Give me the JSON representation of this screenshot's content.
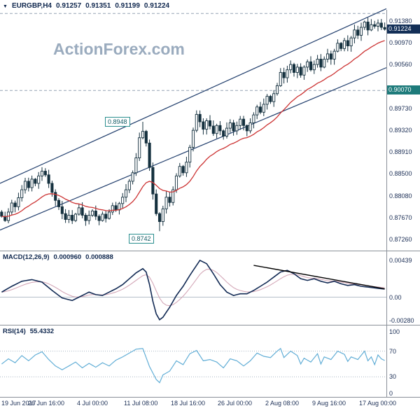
{
  "header": {
    "symbol": "EURGBP,H4",
    "open": "0.91257",
    "high": "0.91351",
    "low": "0.91199",
    "close": "0.91224"
  },
  "icons": {
    "symbol_dropdown": "▼"
  },
  "watermark": "ActionForex.com",
  "colors": {
    "candle": "#14303e",
    "ma": "#cc3333",
    "channel": "#23406e",
    "dashed": "#95a3b4",
    "macd": "#122a54",
    "signal": "#d4a8b8",
    "trendline": "#000000",
    "rsi": "#62aed6",
    "grid_dot": "#a9b6c2",
    "zero": "#b5bec8",
    "separator": "#8a9099",
    "price_box_bg": "#132f57",
    "level_box_bg": "#1e7b7b",
    "axis_text": "#1b2e55"
  },
  "price_panel": {
    "y_labels": [
      "0.91380",
      "0.90970",
      "0.90560",
      "0.89730",
      "0.89320",
      "0.88910",
      "0.88500",
      "0.88080",
      "0.87670",
      "0.87260"
    ],
    "current_price": "0.91224",
    "support_level": "0.90070",
    "resistance_tag": "0.8948",
    "support_tag": "0.8742"
  },
  "macd_panel": {
    "label": "MACD(12,26,9)",
    "value": "0.000960",
    "signal_value": "0.000888",
    "y_labels": [
      {
        "text": "0.00439",
        "v": 0.00439
      },
      {
        "text": "0.00",
        "v": 0
      },
      {
        "text": "-0.00280",
        "v": -0.0028
      }
    ]
  },
  "rsi_panel": {
    "label": "RSI(14)",
    "value": "55.4332",
    "y_labels": [
      {
        "text": "100",
        "v": 100
      },
      {
        "text": "70",
        "v": 70
      },
      {
        "text": "30",
        "v": 30
      },
      {
        "text": "0",
        "v": 0
      }
    ]
  },
  "chart_data": [
    {
      "type": "candlestick",
      "title": "EURGBP,H4",
      "ylabel": "price",
      "xlabel": "time",
      "ylim": [
        0.8708,
        0.9159
      ],
      "current_bar": {
        "open": 0.91257,
        "high": 0.91351,
        "low": 0.91199,
        "close": 0.91224
      },
      "closes": [
        0.877,
        0.8762,
        0.8778,
        0.8795,
        0.8788,
        0.8805,
        0.882,
        0.8836,
        0.8824,
        0.884,
        0.8832,
        0.8846,
        0.8855,
        0.8848,
        0.8832,
        0.8815,
        0.88,
        0.8788,
        0.8775,
        0.8764,
        0.8772,
        0.8762,
        0.8774,
        0.8786,
        0.8772,
        0.8762,
        0.8772,
        0.878,
        0.877,
        0.8762,
        0.8774,
        0.8766,
        0.8778,
        0.879,
        0.8782,
        0.8794,
        0.8806,
        0.882,
        0.8836,
        0.8852,
        0.888,
        0.8918,
        0.893,
        0.8908,
        0.8862,
        0.8812,
        0.8775,
        0.876,
        0.8784,
        0.8806,
        0.8796,
        0.882,
        0.8846,
        0.8864,
        0.8852,
        0.8872,
        0.89,
        0.8932,
        0.8962,
        0.8948,
        0.8934,
        0.895,
        0.894,
        0.8926,
        0.8941,
        0.8931,
        0.8921,
        0.8936,
        0.8946,
        0.8931,
        0.8941,
        0.8953,
        0.8941,
        0.8931,
        0.8946,
        0.8961,
        0.8976,
        0.8966,
        0.8981,
        0.8996,
        0.8986,
        0.9001,
        0.9016,
        0.9041,
        0.9031,
        0.9046,
        0.9056,
        0.9041,
        0.9051,
        0.9036,
        0.9051,
        0.9061,
        0.9046,
        0.9056,
        0.9066,
        0.9051,
        0.9066,
        0.9076,
        0.9066,
        0.9081,
        0.9096,
        0.9086,
        0.9101,
        0.9091,
        0.9106,
        0.9121,
        0.9111,
        0.9126,
        0.9136,
        0.9121,
        0.9131,
        0.9128,
        0.9134,
        0.9126,
        0.91224
      ],
      "key_bars": {
        "42": {
          "h": 0.8948
        },
        "47": {
          "l": 0.8742
        },
        "114": {
          "o": 0.91257,
          "h": 0.91351,
          "l": 0.91199,
          "c": 0.91224
        }
      },
      "ma": {
        "kind": "ema",
        "period": 21
      },
      "channel": {
        "upper": [
          0.8832,
          0.9161
        ],
        "lower": [
          0.8744,
          0.905
        ]
      },
      "dashed_levels": [
        0.9152,
        0.9007
      ],
      "annotations": [
        {
          "text": "0.8948",
          "price": 0.8948,
          "side": "above"
        },
        {
          "text": "0.8742",
          "price": 0.8742,
          "side": "below"
        }
      ],
      "x_labels": [
        "19 Jun 2017",
        "26 Jun 16:00",
        "4 Jul 00:00",
        "11 Jul 08:00",
        "18 Jul 16:00",
        "26 Jul 00:00",
        "2 Aug 08:00",
        "9 Aug 16:00",
        "17 Aug 00:00"
      ],
      "x_label_bars": [
        0,
        13.5,
        28,
        42,
        56,
        70,
        84,
        98,
        112
      ]
    },
    {
      "type": "line",
      "title": "MACD(12,26,9)",
      "current": 0.00096,
      "signal_current": 0.000888,
      "ylim": [
        -0.0033,
        0.0052
      ],
      "keypoints": [
        [
          0,
          0.0006
        ],
        [
          3,
          0.0013
        ],
        [
          6,
          0.0019
        ],
        [
          9,
          0.0021
        ],
        [
          12,
          0.0018
        ],
        [
          15,
          0.0008
        ],
        [
          18,
          -0.0001
        ],
        [
          21,
          -0.0004
        ],
        [
          24,
          0.0002
        ],
        [
          26,
          0.0006
        ],
        [
          28,
          0.0003
        ],
        [
          30,
          0.0002
        ],
        [
          32,
          0.0006
        ],
        [
          34,
          0.001
        ],
        [
          36,
          0.0015
        ],
        [
          38,
          0.0022
        ],
        [
          40,
          0.0029
        ],
        [
          42,
          0.0034
        ],
        [
          43,
          0.003
        ],
        [
          44,
          0.0015
        ],
        [
          45,
          -0.0005
        ],
        [
          46,
          -0.002
        ],
        [
          47,
          -0.0027
        ],
        [
          48,
          -0.0024
        ],
        [
          50,
          -0.0012
        ],
        [
          52,
          0.0002
        ],
        [
          54,
          0.0013
        ],
        [
          56,
          0.0026
        ],
        [
          58,
          0.0038
        ],
        [
          59,
          0.0044
        ],
        [
          61,
          0.004
        ],
        [
          63,
          0.0028
        ],
        [
          65,
          0.0015
        ],
        [
          67,
          0.0006
        ],
        [
          69,
          0.0002
        ],
        [
          71,
          0.0004
        ],
        [
          73,
          0.0004
        ],
        [
          75,
          0.0008
        ],
        [
          77,
          0.0013
        ],
        [
          79,
          0.0018
        ],
        [
          81,
          0.0024
        ],
        [
          83,
          0.003
        ],
        [
          85,
          0.0032
        ],
        [
          87,
          0.0028
        ],
        [
          89,
          0.0022
        ],
        [
          91,
          0.002
        ],
        [
          93,
          0.0022
        ],
        [
          95,
          0.0019
        ],
        [
          97,
          0.0017
        ],
        [
          99,
          0.0019
        ],
        [
          101,
          0.0016
        ],
        [
          103,
          0.0014
        ],
        [
          105,
          0.0015
        ],
        [
          107,
          0.0013
        ],
        [
          109,
          0.0012
        ],
        [
          111,
          0.0011
        ],
        [
          113,
          0.001
        ],
        [
          114,
          0.00096
        ]
      ],
      "trendline": [
        [
          75,
          0.0038
        ],
        [
          114,
          0.001
        ]
      ]
    },
    {
      "type": "line",
      "title": "RSI(14)",
      "current": 55.4332,
      "ylim": [
        0,
        100
      ],
      "levels": [
        70,
        30
      ],
      "keypoints": [
        [
          0,
          50
        ],
        [
          2,
          58
        ],
        [
          4,
          52
        ],
        [
          6,
          63
        ],
        [
          8,
          55
        ],
        [
          10,
          64
        ],
        [
          12,
          69
        ],
        [
          14,
          57
        ],
        [
          16,
          47
        ],
        [
          18,
          41
        ],
        [
          20,
          47
        ],
        [
          22,
          53
        ],
        [
          24,
          44
        ],
        [
          26,
          51
        ],
        [
          28,
          45
        ],
        [
          30,
          52
        ],
        [
          32,
          47
        ],
        [
          34,
          56
        ],
        [
          36,
          61
        ],
        [
          38,
          67
        ],
        [
          40,
          73
        ],
        [
          42,
          74
        ],
        [
          44,
          46
        ],
        [
          46,
          26
        ],
        [
          47,
          21
        ],
        [
          48,
          33
        ],
        [
          50,
          39
        ],
        [
          52,
          55
        ],
        [
          54,
          49
        ],
        [
          56,
          66
        ],
        [
          58,
          71
        ],
        [
          60,
          55
        ],
        [
          62,
          57
        ],
        [
          64,
          53
        ],
        [
          66,
          44
        ],
        [
          68,
          58
        ],
        [
          70,
          55
        ],
        [
          72,
          47
        ],
        [
          74,
          55
        ],
        [
          76,
          67
        ],
        [
          78,
          62
        ],
        [
          80,
          60
        ],
        [
          82,
          70
        ],
        [
          83,
          74
        ],
        [
          84,
          60
        ],
        [
          86,
          70
        ],
        [
          88,
          63
        ],
        [
          89,
          50
        ],
        [
          90,
          59
        ],
        [
          92,
          53
        ],
        [
          94,
          66
        ],
        [
          95,
          50
        ],
        [
          96,
          61
        ],
        [
          98,
          57
        ],
        [
          100,
          70
        ],
        [
          102,
          65
        ],
        [
          103,
          54
        ],
        [
          104,
          61
        ],
        [
          106,
          57
        ],
        [
          108,
          70
        ],
        [
          109,
          55
        ],
        [
          110,
          61
        ],
        [
          111,
          49
        ],
        [
          112,
          64
        ],
        [
          113,
          58
        ],
        [
          114,
          55.43
        ]
      ]
    }
  ]
}
